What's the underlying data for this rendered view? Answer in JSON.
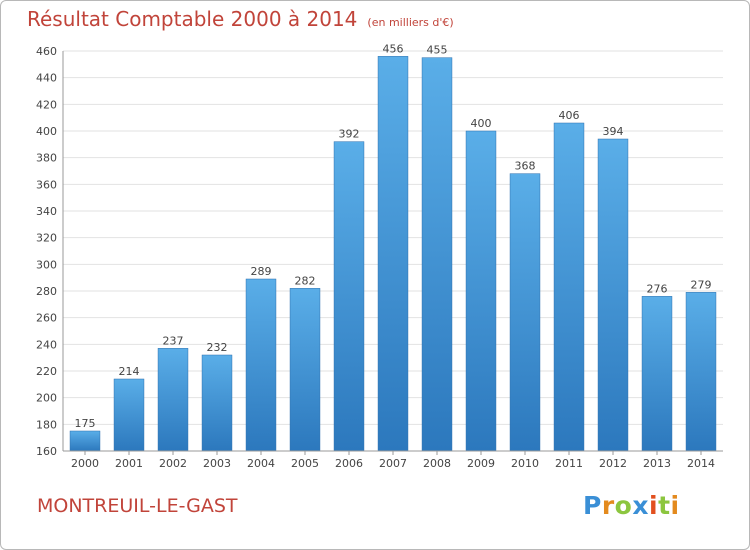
{
  "header": {
    "title": "Résultat Comptable 2000 à 2014",
    "unit": "(en milliers d'€)"
  },
  "footer": {
    "city": "MONTREUIL-LE-GAST",
    "brand_letters": [
      "P",
      "r",
      "o",
      "x",
      "i",
      "t",
      "i"
    ]
  },
  "colors": {
    "title": "#c1443a",
    "bar_top": "#5aaee8",
    "bar_bottom": "#2c78bd",
    "grid": "#e2e2e2"
  },
  "chart_data": {
    "type": "bar",
    "title": "Résultat Comptable 2000 à 2014",
    "subtitle": "(en milliers d'€)",
    "categories": [
      "2000",
      "2001",
      "2002",
      "2003",
      "2004",
      "2005",
      "2006",
      "2007",
      "2008",
      "2009",
      "2010",
      "2011",
      "2012",
      "2013",
      "2014"
    ],
    "values": [
      175,
      214,
      237,
      232,
      289,
      282,
      392,
      456,
      455,
      400,
      368,
      406,
      394,
      276,
      279
    ],
    "ylim": [
      160,
      460
    ],
    "yticks": [
      160,
      180,
      200,
      220,
      240,
      260,
      280,
      300,
      320,
      340,
      360,
      380,
      400,
      420,
      440,
      460
    ],
    "grid": true,
    "data_labels": true
  }
}
